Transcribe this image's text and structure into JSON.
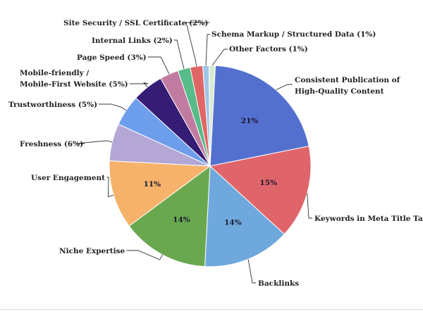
{
  "chart_data": {
    "type": "pie",
    "title": "",
    "slices": [
      {
        "label": "Consistent Publication of High-Quality Content",
        "value": 21,
        "pct_label": "21%",
        "color": "#5470cf"
      },
      {
        "label": "Keywords in Meta Title Tags",
        "value": 15,
        "pct_label": "15%",
        "color": "#e0656a"
      },
      {
        "label": "Backlinks",
        "value": 14,
        "pct_label": "14%",
        "color": "#6fa8dc"
      },
      {
        "label": "Niche Expertise",
        "value": 14,
        "pct_label": "14%",
        "color": "#6aa84f"
      },
      {
        "label": "User Engagement",
        "value": 11,
        "pct_label": "11%",
        "color": "#f6b26b"
      },
      {
        "label": "Freshness (6%)",
        "value": 6,
        "pct_label": "",
        "color": "#b4a7d6"
      },
      {
        "label": "Trustworthiness (5%)",
        "value": 5,
        "pct_label": "",
        "color": "#6d9eeb"
      },
      {
        "label": "Mobile-friendly / Mobile-First Website (5%)",
        "value": 5,
        "pct_label": "",
        "color": "#351c75"
      },
      {
        "label": "Page Speed (3%)",
        "value": 3,
        "pct_label": "",
        "color": "#c27ba0"
      },
      {
        "label": "Internal Links (2%)",
        "value": 2,
        "pct_label": "",
        "color": "#57bb8a"
      },
      {
        "label": "Site Security / SSL Certificate (2%)",
        "value": 2,
        "pct_label": "",
        "color": "#e06666"
      },
      {
        "label": "Schema Markup / Structured Data (1%)",
        "value": 1,
        "pct_label": "",
        "color": "#9fc5e8"
      },
      {
        "label": "Other Factors (1%)",
        "value": 1,
        "pct_label": "",
        "color": "#d9ead3"
      }
    ]
  },
  "labels": [
    {
      "lines": [
        "Consistent Publication of",
        "High-Quality Content"
      ]
    },
    {
      "lines": [
        "Keywords in Meta Title Tags"
      ]
    },
    {
      "lines": [
        "Backlinks"
      ]
    },
    {
      "lines": [
        "Niche Expertise"
      ]
    },
    {
      "lines": [
        "User Engagement"
      ]
    },
    {
      "lines": [
        "Freshness (6%)"
      ]
    },
    {
      "lines": [
        "Trustworthiness (5%)"
      ]
    },
    {
      "lines": [
        "Mobile-friendly /",
        "Mobile-First Website (5%)"
      ]
    },
    {
      "lines": [
        "Page Speed (3%)"
      ]
    },
    {
      "lines": [
        "Internal Links (2%)"
      ]
    },
    {
      "lines": [
        "Site Security / SSL Certificate (2%)"
      ]
    },
    {
      "lines": [
        "Schema Markup / Structured Data (1%)"
      ]
    },
    {
      "lines": [
        "Other Factors (1%)"
      ]
    }
  ]
}
